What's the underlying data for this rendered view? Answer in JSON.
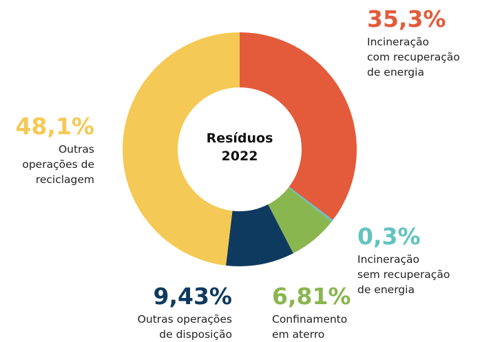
{
  "chart_data": {
    "type": "donut",
    "title": "Resíduos\n2022",
    "categories": [
      "Incineração\ncom recuperação\nde energia",
      "Incineração\nsem recuperação\nde energia",
      "Confinamento\nem aterro",
      "Outras operações\nde disposição",
      "Outras\noperações de\nreciclagem"
    ],
    "values": [
      35.3,
      0.3,
      6.81,
      9.43,
      48.1
    ],
    "value_labels": [
      "35,3%",
      "0,3%",
      "6,81%",
      "9,43%",
      "48,1%"
    ],
    "colors": [
      "#e35b3a",
      "#62c3c0",
      "#8ab650",
      "#0f3a5f",
      "#f5c955"
    ]
  }
}
